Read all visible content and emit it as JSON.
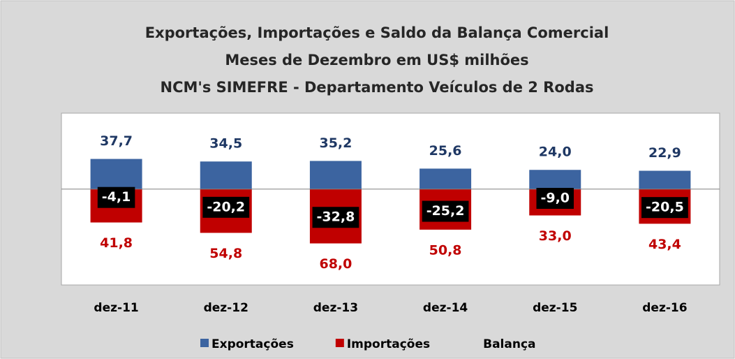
{
  "chart_data": {
    "type": "bar",
    "title": [
      "Exportações, Importações e Saldo da Balança Comercial",
      "Meses de Dezembro em US$ milhões",
      "NCM's SIMEFRE - Departamento Veículos de 2 Rodas"
    ],
    "categories": [
      "dez-11",
      "dez-12",
      "dez-13",
      "dez-14",
      "dez-15",
      "dez-16"
    ],
    "ylim": [
      -120,
      95
    ],
    "series": [
      {
        "name": "Exportações",
        "type": "bar",
        "color": "#3c64a0",
        "label_color": "#1f3864",
        "values": [
          37.7,
          34.5,
          35.2,
          25.6,
          24.0,
          22.9
        ],
        "value_labels": [
          "37,7",
          "34,5",
          "35,2",
          "25,6",
          "24,0",
          "22,9"
        ]
      },
      {
        "name": "Importações",
        "type": "bar",
        "color": "#c00000",
        "label_color": "#c00000",
        "values": [
          -41.8,
          -54.8,
          -68.0,
          -50.8,
          -33.0,
          -43.4
        ],
        "value_labels": [
          "41,8",
          "54,8",
          "68,0",
          "50,8",
          "33,0",
          "43,4"
        ]
      },
      {
        "name": "Balança",
        "type": "label",
        "color": "#000000",
        "label_color": "#ffffff",
        "values": [
          -4.1,
          -20.2,
          -32.8,
          -25.2,
          -9.0,
          -20.5
        ],
        "value_labels": [
          "-4,1",
          "-20,2",
          "-32,8",
          "-25,2",
          "-9,0",
          "-20,5"
        ]
      }
    ]
  }
}
